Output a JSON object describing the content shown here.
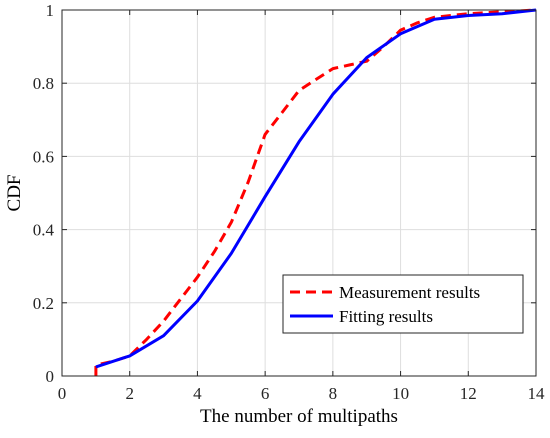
{
  "chart_data": {
    "type": "line",
    "xlabel": "The number of multipaths",
    "ylabel": "CDF",
    "xlim": [
      0,
      14
    ],
    "ylim": [
      0,
      1
    ],
    "xticks": [
      0,
      2,
      4,
      6,
      8,
      10,
      12,
      14
    ],
    "yticks": [
      0,
      0.2,
      0.4,
      0.6,
      0.8,
      1
    ],
    "xtick_labels": [
      "0",
      "2",
      "4",
      "6",
      "8",
      "10",
      "12",
      "14"
    ],
    "ytick_labels": [
      "0",
      "0.2",
      "0.4",
      "0.6",
      "0.8",
      "1"
    ],
    "grid": true,
    "legend_position": "bottom-right",
    "series": [
      {
        "name": "Measurement results",
        "style": "dashed",
        "color": "#ff0000",
        "x": [
          1,
          1,
          1.5,
          2,
          2.5,
          3,
          3.5,
          4,
          4.5,
          5,
          5.5,
          6,
          6.5,
          7,
          7.5,
          8,
          8.5,
          9,
          9.5,
          10,
          10.5,
          11,
          12,
          13,
          14
        ],
        "y": [
          0,
          0.03,
          0.04,
          0.055,
          0.1,
          0.15,
          0.21,
          0.27,
          0.34,
          0.42,
          0.53,
          0.66,
          0.72,
          0.78,
          0.81,
          0.84,
          0.85,
          0.86,
          0.9,
          0.945,
          0.965,
          0.98,
          0.99,
          0.995,
          1.0
        ]
      },
      {
        "name": "Fitting results",
        "style": "solid",
        "color": "#0000ff",
        "x": [
          1,
          2,
          3,
          4,
          5,
          6,
          7,
          8,
          9,
          10,
          11,
          12,
          13,
          14
        ],
        "y": [
          0.025,
          0.055,
          0.11,
          0.205,
          0.335,
          0.49,
          0.64,
          0.77,
          0.87,
          0.935,
          0.975,
          0.985,
          0.99,
          1.0
        ]
      }
    ]
  }
}
